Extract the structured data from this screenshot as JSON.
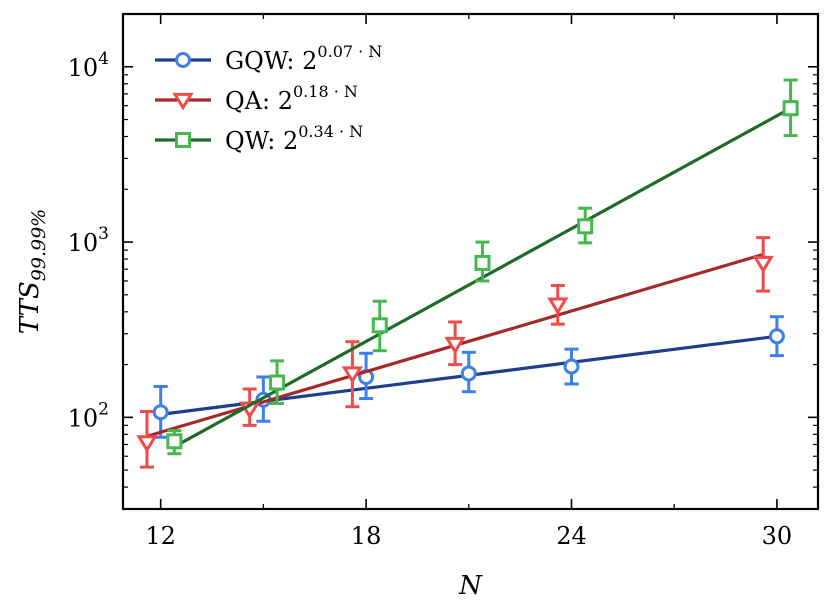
{
  "chart_data": {
    "type": "line",
    "scale": {
      "x": "linear",
      "y": "log"
    },
    "xlabel": "N",
    "ylabel": "TTS99.99%",
    "xlim": [
      10.9,
      31.2
    ],
    "ylim": [
      30,
      20000
    ],
    "xticks": [
      12,
      18,
      24,
      30
    ],
    "xtick_labels": [
      "12",
      "18",
      "24",
      "30"
    ],
    "xticks_minor": [
      15,
      21,
      27
    ],
    "yticks": [
      {
        "value": 100,
        "base": "10",
        "exp": "2"
      },
      {
        "value": 1000,
        "base": "10",
        "exp": "3"
      },
      {
        "value": 10000,
        "base": "10",
        "exp": "4"
      }
    ],
    "legend_position": "top-left",
    "series": [
      {
        "name": "GQW",
        "legend_prefix": "GQW: 2",
        "legend_exponent": "0.07 · N",
        "color": "#1f3d8f",
        "marker_color": "#3f7fe8",
        "marker": "circle",
        "fit": {
          "x": [
            12,
            30
          ],
          "y": [
            104,
            290
          ]
        },
        "points": [
          {
            "x": 12,
            "y": 107,
            "lo": 77,
            "hi": 150
          },
          {
            "x": 15,
            "y": 126,
            "lo": 95,
            "hi": 170
          },
          {
            "x": 18,
            "y": 170,
            "lo": 128,
            "hi": 232
          },
          {
            "x": 21,
            "y": 178,
            "lo": 140,
            "hi": 235
          },
          {
            "x": 24,
            "y": 195,
            "lo": 155,
            "hi": 245
          },
          {
            "x": 30,
            "y": 290,
            "lo": 225,
            "hi": 375
          }
        ]
      },
      {
        "name": "QA",
        "legend_prefix": "QA: 2",
        "legend_exponent": "0.18 · N",
        "color": "#a4292a",
        "marker_color": "#ee4b4b",
        "marker": "triangle-down",
        "fit": {
          "x": [
            11.6,
            29.6
          ],
          "y": [
            78,
            850
          ]
        },
        "points": [
          {
            "x": 11.6,
            "y": 72,
            "lo": 52,
            "hi": 108
          },
          {
            "x": 14.6,
            "y": 112,
            "lo": 90,
            "hi": 145
          },
          {
            "x": 17.6,
            "y": 178,
            "lo": 115,
            "hi": 270
          },
          {
            "x": 20.6,
            "y": 262,
            "lo": 200,
            "hi": 350
          },
          {
            "x": 23.6,
            "y": 440,
            "lo": 340,
            "hi": 565
          },
          {
            "x": 29.6,
            "y": 760,
            "lo": 525,
            "hi": 1060
          }
        ]
      },
      {
        "name": "QW",
        "legend_prefix": "QW: 2",
        "legend_exponent": "0.34 · N",
        "color": "#1d6b27",
        "marker_color": "#45b84d",
        "marker": "square",
        "fit": {
          "x": [
            12.4,
            30.4
          ],
          "y": [
            68,
            5800
          ]
        },
        "points": [
          {
            "x": 12.4,
            "y": 73,
            "lo": 62,
            "hi": 84
          },
          {
            "x": 15.4,
            "y": 158,
            "lo": 120,
            "hi": 210
          },
          {
            "x": 18.4,
            "y": 335,
            "lo": 240,
            "hi": 460
          },
          {
            "x": 21.4,
            "y": 760,
            "lo": 600,
            "hi": 1000
          },
          {
            "x": 24.4,
            "y": 1230,
            "lo": 990,
            "hi": 1560
          },
          {
            "x": 30.4,
            "y": 5800,
            "lo": 4050,
            "hi": 8400
          }
        ]
      }
    ]
  }
}
